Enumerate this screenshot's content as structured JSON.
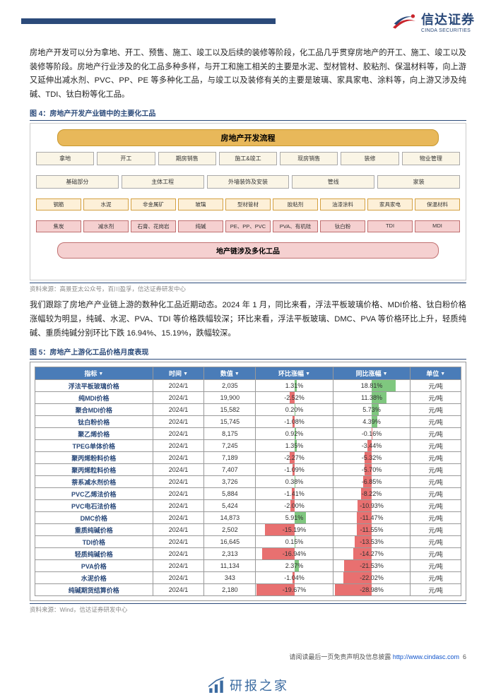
{
  "header": {
    "brand_cn": "信达证券",
    "brand_en": "CINDA SECURITIES",
    "bar_color": "#2b4a7a"
  },
  "para1": "房地产开发可以分为拿地、开工、预售、施工、竣工以及后续的装修等阶段，化工品几乎贯穿房地产的开工、施工、竣工以及装修等阶段。房地产行业涉及的化工品多种多样，与开工和施工相关的主要是水泥、型材管材、胶粘剂、保温材料等，向上游又延伸出减水剂、PVC、PP、PE 等多种化工品，与竣工以及装修有关的主要是玻璃、家具家电、涂料等，向上游又涉及纯碱、TDI、钛白粉等化工品。",
  "fig4_title": "图 4：房地产开发产业链中的主要化工品",
  "flow": {
    "header": "房地产开发流程",
    "row1": [
      "拿地",
      "开工",
      "期房销售",
      "施工&竣工",
      "现房销售",
      "装修",
      "物业管理"
    ],
    "row2": [
      "基础部分",
      "主体工程",
      "外墙装饰及安装",
      "管线",
      "家装"
    ],
    "row3": [
      "钢筋",
      "水泥",
      "非金属矿",
      "玻璃",
      "型材管材",
      "胶粘剂",
      "油漆涂料",
      "家具家电",
      "保温材料"
    ],
    "row4": [
      "焦炭",
      "减水剂",
      "石膏、花岗岩",
      "纯碱",
      "PE、PP、PVC",
      "PVA、有机硅",
      "钛白粉",
      "TDI",
      "MDI"
    ],
    "footer": "地产链涉及多化工品"
  },
  "src4": "资料来源：高景亚太公众号，百川盈孚，信达证券研发中心",
  "para2": "我们跟踪了房地产产业链上游的数种化工品近期动态。2024 年 1 月，同比来看，浮法平板玻璃价格、MDI价格、钛白粉价格涨幅较为明显，纯碱、水泥、PVA、TDI 等价格跌幅较深；环比来看，浮法平板玻璃、DMC、PVA 等价格环比上升，轻质纯碱、重质纯碱分别环比下跌 16.94%、15.19%，跌幅较深。",
  "fig5_title": "图 5：房地产上游化工品价格月度表现",
  "table": {
    "columns": [
      "指标",
      "时间",
      "数值",
      "环比涨幅",
      "同比涨幅",
      "单位"
    ],
    "rows": [
      {
        "name": "浮法平板玻璃价格",
        "time": "2024/1",
        "val": "2,035",
        "mom": "1.31%",
        "mom_n": 1.31,
        "yoy": "18.81%",
        "yoy_n": 18.81,
        "unit": "元/吨"
      },
      {
        "name": "纯MDI价格",
        "time": "2024/1",
        "val": "19,900",
        "mom": "-2.52%",
        "mom_n": -2.52,
        "yoy": "11.38%",
        "yoy_n": 11.38,
        "unit": "元/吨"
      },
      {
        "name": "聚合MDI价格",
        "time": "2024/1",
        "val": "15,582",
        "mom": "0.20%",
        "mom_n": 0.2,
        "yoy": "5.73%",
        "yoy_n": 5.73,
        "unit": "元/吨"
      },
      {
        "name": "钛白粉价格",
        "time": "2024/1",
        "val": "15,745",
        "mom": "-1.08%",
        "mom_n": -1.08,
        "yoy": "4.39%",
        "yoy_n": 4.39,
        "unit": "元/吨"
      },
      {
        "name": "聚乙烯价格",
        "time": "2024/1",
        "val": "8,175",
        "mom": "0.92%",
        "mom_n": 0.92,
        "yoy": "-0.16%",
        "yoy_n": -0.16,
        "unit": "元/吨"
      },
      {
        "name": "TPEG单体价格",
        "time": "2024/1",
        "val": "7,245",
        "mom": "1.35%",
        "mom_n": 1.35,
        "yoy": "-3.44%",
        "yoy_n": -3.44,
        "unit": "元/吨"
      },
      {
        "name": "聚丙烯粉料价格",
        "time": "2024/1",
        "val": "7,189",
        "mom": "-2.27%",
        "mom_n": -2.27,
        "yoy": "-5.32%",
        "yoy_n": -5.32,
        "unit": "元/吨"
      },
      {
        "name": "聚丙烯粒料价格",
        "time": "2024/1",
        "val": "7,407",
        "mom": "-1.09%",
        "mom_n": -1.09,
        "yoy": "-5.70%",
        "yoy_n": -5.7,
        "unit": "元/吨"
      },
      {
        "name": "萘系减水剂价格",
        "time": "2024/1",
        "val": "3,726",
        "mom": "0.38%",
        "mom_n": 0.38,
        "yoy": "-6.85%",
        "yoy_n": -6.85,
        "unit": "元/吨"
      },
      {
        "name": "PVC乙烯法价格",
        "time": "2024/1",
        "val": "5,884",
        "mom": "-1.41%",
        "mom_n": -1.41,
        "yoy": "-8.22%",
        "yoy_n": -8.22,
        "unit": "元/吨"
      },
      {
        "name": "PVC电石法价格",
        "time": "2024/1",
        "val": "5,424",
        "mom": "-2.00%",
        "mom_n": -2.0,
        "yoy": "-10.93%",
        "yoy_n": -10.93,
        "unit": "元/吨"
      },
      {
        "name": "DMC价格",
        "time": "2024/1",
        "val": "14,873",
        "mom": "5.91%",
        "mom_n": 5.91,
        "yoy": "-11.47%",
        "yoy_n": -11.47,
        "unit": "元/吨"
      },
      {
        "name": "重质纯碱价格",
        "time": "2024/1",
        "val": "2,502",
        "mom": "-15.19%",
        "mom_n": -15.19,
        "yoy": "-11.55%",
        "yoy_n": -11.55,
        "unit": "元/吨"
      },
      {
        "name": "TDI价格",
        "time": "2024/1",
        "val": "16,645",
        "mom": "0.15%",
        "mom_n": 0.15,
        "yoy": "-13.53%",
        "yoy_n": -13.53,
        "unit": "元/吨"
      },
      {
        "name": "轻质纯碱价格",
        "time": "2024/1",
        "val": "2,313",
        "mom": "-16.94%",
        "mom_n": -16.94,
        "yoy": "-14.27%",
        "yoy_n": -14.27,
        "unit": "元/吨"
      },
      {
        "name": "PVA价格",
        "time": "2024/1",
        "val": "11,134",
        "mom": "2.37%",
        "mom_n": 2.37,
        "yoy": "-21.53%",
        "yoy_n": -21.53,
        "unit": "元/吨"
      },
      {
        "name": "水泥价格",
        "time": "2024/1",
        "val": "343",
        "mom": "-1.04%",
        "mom_n": -1.04,
        "yoy": "-22.02%",
        "yoy_n": -22.02,
        "unit": "元/吨"
      },
      {
        "name": "纯碱期货结算价格",
        "time": "2024/1",
        "val": "2,180",
        "mom": "-19.67%",
        "mom_n": -19.67,
        "yoy": "-28.98%",
        "yoy_n": -28.98,
        "unit": "元/吨"
      }
    ],
    "mom_max": 20,
    "yoy_max": 30,
    "pos_color": "#7fc77f",
    "neg_color": "#e87070",
    "header_bg": "#4a7cb8"
  },
  "src5": "资料来源：Wind，信达证券研发中心",
  "footer": {
    "text": "请阅读最后一页免责声明及信息披露 ",
    "link": "http://www.cindasc.com",
    "page": "6"
  },
  "watermark": "研报之家"
}
